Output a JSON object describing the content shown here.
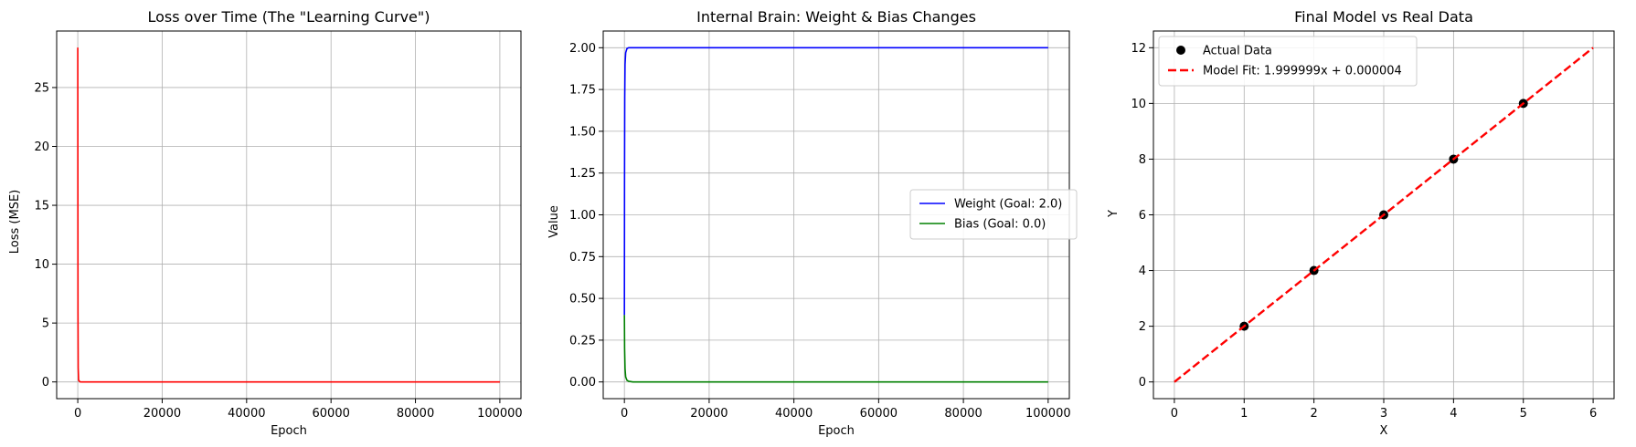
{
  "chart_data": [
    {
      "id": "loss",
      "type": "line",
      "title": "Loss over Time (The \"Learning Curve\")",
      "xlabel": "Epoch",
      "ylabel": "Loss (MSE)",
      "xlim": [
        -5000,
        105000
      ],
      "ylim": [
        -1.42,
        29.8
      ],
      "xticks": [
        0,
        20000,
        40000,
        60000,
        80000,
        100000
      ],
      "yticks": [
        0,
        5,
        10,
        15,
        20,
        25
      ],
      "grid": true,
      "series": [
        {
          "color": "#ff0000",
          "x": [
            0,
            50,
            100,
            200,
            500,
            1000,
            100000
          ],
          "y": [
            28.4,
            6.0,
            1.2,
            0.15,
            0.01,
            0.0,
            0.0
          ]
        }
      ]
    },
    {
      "id": "params",
      "type": "line",
      "title": "Internal Brain: Weight & Bias Changes",
      "xlabel": "Epoch",
      "ylabel": "Value",
      "xlim": [
        -5000,
        105000
      ],
      "ylim": [
        -0.1,
        2.1
      ],
      "xticks": [
        0,
        20000,
        40000,
        60000,
        80000,
        100000
      ],
      "yticks": [
        0.0,
        0.25,
        0.5,
        0.75,
        1.0,
        1.25,
        1.5,
        1.75,
        2.0
      ],
      "ytick_labels": [
        "0.00",
        "0.25",
        "0.50",
        "0.75",
        "1.00",
        "1.25",
        "1.50",
        "1.75",
        "2.00"
      ],
      "grid": true,
      "legend": "center-right",
      "series": [
        {
          "name": "Weight (Goal: 2.0)",
          "color": "#0000ff",
          "x": [
            0,
            30,
            80,
            150,
            300,
            600,
            1000,
            2000,
            100000
          ],
          "y": [
            0.4,
            1.2,
            1.7,
            1.9,
            1.97,
            1.995,
            2.0,
            2.0,
            2.0
          ]
        },
        {
          "name": "Bias (Goal: 0.0)",
          "color": "#008000",
          "x": [
            0,
            50,
            150,
            300,
            600,
            1000,
            2000,
            100000
          ],
          "y": [
            0.4,
            0.2,
            0.08,
            0.03,
            0.01,
            0.004,
            0.0,
            0.0
          ]
        }
      ]
    },
    {
      "id": "fit",
      "type": "scatter",
      "title": "Final Model vs Real Data",
      "xlabel": "X",
      "ylabel": "Y",
      "xlim": [
        -0.3,
        6.3
      ],
      "ylim": [
        -0.6,
        12.6
      ],
      "xticks": [
        0,
        1,
        2,
        3,
        4,
        5,
        6
      ],
      "yticks": [
        0,
        2,
        4,
        6,
        8,
        10,
        12
      ],
      "grid": true,
      "legend": "top-left",
      "series": [
        {
          "name": "Actual Data",
          "kind": "scatter",
          "color": "#000000",
          "x": [
            1,
            2,
            3,
            4,
            5
          ],
          "y": [
            2,
            4,
            6,
            8,
            10
          ]
        },
        {
          "name": "Model Fit: 1.999999x + 0.000004",
          "kind": "dashed-line",
          "color": "#ff0000",
          "x": [
            0,
            6
          ],
          "y": [
            4e-06,
            11.999998
          ]
        }
      ]
    }
  ]
}
